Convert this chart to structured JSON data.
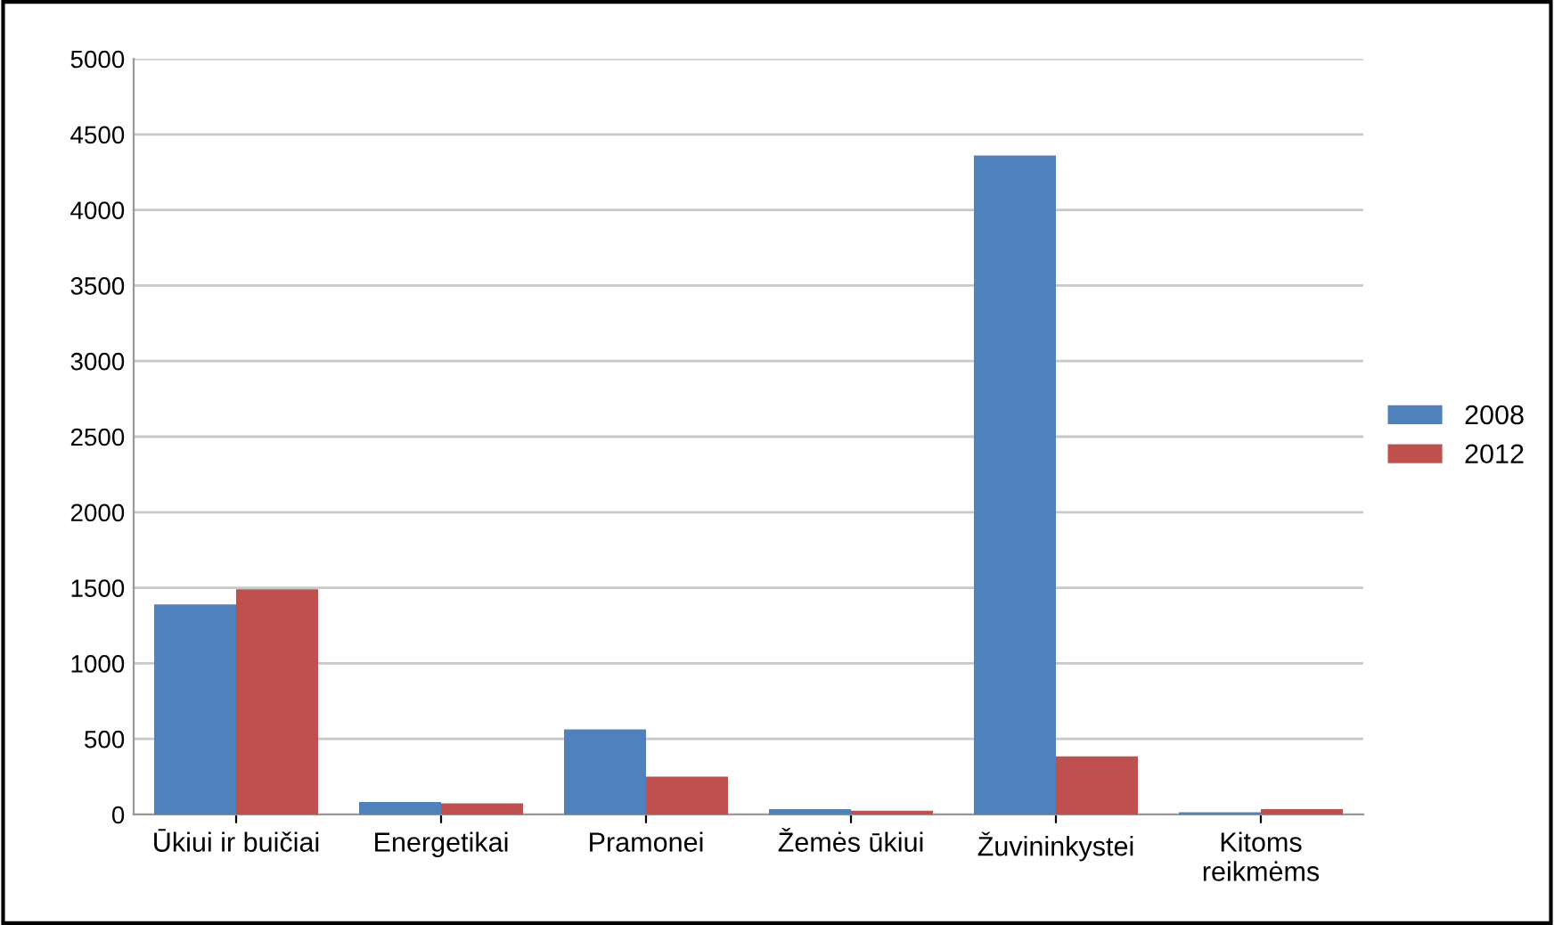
{
  "chart_data": {
    "type": "bar",
    "categories": [
      "Ūkiui ir buičiai",
      "Energetikai",
      "Pramonei",
      "Žemės ūkiui",
      "Žuvininkystei",
      "Kitoms\nreikmėms"
    ],
    "series": [
      {
        "name": "2008",
        "color": "#4f81bd",
        "values": [
          1390,
          83,
          563,
          35,
          4360,
          15
        ]
      },
      {
        "name": "2012",
        "color": "#c0504d",
        "values": [
          1490,
          74,
          250,
          25,
          385,
          35
        ]
      }
    ],
    "ylim": [
      0,
      5000
    ],
    "yticks": [
      0,
      500,
      1000,
      1500,
      2000,
      2500,
      3000,
      3500,
      4000,
      4500,
      5000
    ],
    "grid": "y",
    "legend": "right"
  }
}
